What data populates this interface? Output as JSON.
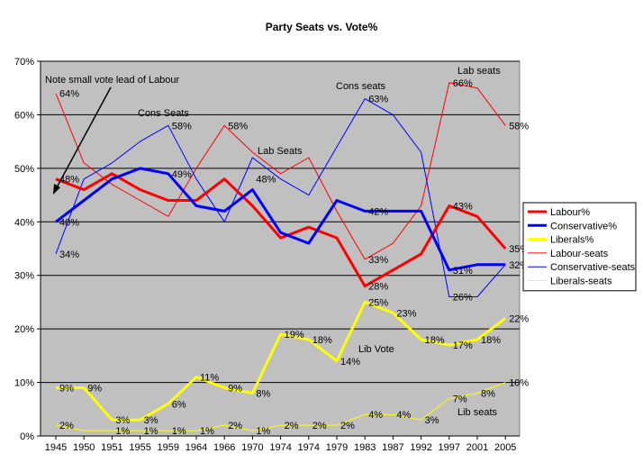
{
  "chart_data": {
    "type": "line",
    "title": "Party Seats vs. Vote%",
    "xlabel": "",
    "ylabel": "",
    "categories": [
      "1945",
      "1950",
      "1951",
      "1955",
      "1959",
      "1964",
      "1966",
      "1970",
      "1974",
      "1974",
      "1979",
      "1983",
      "1987",
      "1992",
      "1997",
      "2001",
      "2005"
    ],
    "ylim": [
      0,
      70
    ],
    "y_ticks": [
      "0%",
      "10%",
      "20%",
      "30%",
      "40%",
      "50%",
      "60%",
      "70%"
    ],
    "grid": "horizontal",
    "plot_background": "#c0c0c0",
    "legend_position": "right",
    "series": [
      {
        "name": "Labour%",
        "color": "#ff0000",
        "width": 3,
        "values": [
          48,
          46,
          49,
          46,
          44,
          44,
          48,
          43,
          37,
          39,
          37,
          28,
          31,
          34,
          43,
          41,
          35
        ]
      },
      {
        "name": "Conservative%",
        "color": "#0000ff",
        "width": 3,
        "values": [
          40,
          44,
          48,
          50,
          49,
          43,
          42,
          46,
          38,
          36,
          44,
          42,
          42,
          42,
          31,
          32,
          32
        ]
      },
      {
        "name": "Liberals%",
        "color": "#ffff00",
        "width": 3,
        "values": [
          9,
          9,
          3,
          3,
          6,
          11,
          9,
          8,
          19,
          18,
          14,
          25,
          23,
          18,
          17,
          18,
          22
        ]
      },
      {
        "name": "Labour-seats",
        "color": "#ff0000",
        "width": 1,
        "values": [
          64,
          51,
          47,
          44,
          41,
          50,
          58,
          53,
          49,
          52,
          42,
          33,
          36,
          43,
          66,
          65,
          58
        ]
      },
      {
        "name": "Conservative-seats",
        "color": "#0000ff",
        "width": 1,
        "values": [
          34,
          48,
          51,
          55,
          58,
          48,
          40,
          52,
          48,
          45,
          54,
          63,
          60,
          53,
          26,
          26,
          32
        ]
      },
      {
        "name": "Liberals-seats",
        "color": "#ffff00",
        "width": 1,
        "values": [
          2,
          1,
          1,
          1,
          1,
          1,
          2,
          1,
          2,
          2,
          2,
          4,
          4,
          3,
          7,
          8,
          10
        ]
      }
    ],
    "data_labels": [
      {
        "text": "48%",
        "x_index": 0,
        "y": 48
      },
      {
        "text": "40%",
        "x_index": 0,
        "y": 40
      },
      {
        "text": "9%",
        "x_index": 0,
        "y": 9
      },
      {
        "text": "64%",
        "x_index": 0,
        "y": 64
      },
      {
        "text": "34%",
        "x_index": 0,
        "y": 34
      },
      {
        "text": "2%",
        "x_index": 0,
        "y": 2
      },
      {
        "text": "9%",
        "x_index": 1,
        "y": 9
      },
      {
        "text": "3%",
        "x_index": 2,
        "y": 3
      },
      {
        "text": "1%",
        "x_index": 2,
        "y": 1
      },
      {
        "text": "3%",
        "x_index": 3,
        "y": 3
      },
      {
        "text": "1%",
        "x_index": 3,
        "y": 1
      },
      {
        "text": "58%",
        "x_index": 4,
        "y": 58
      },
      {
        "text": "49%",
        "x_index": 4,
        "y": 49
      },
      {
        "text": "6%",
        "x_index": 4,
        "y": 6
      },
      {
        "text": "1%",
        "x_index": 4,
        "y": 1
      },
      {
        "text": "11%",
        "x_index": 5,
        "y": 11
      },
      {
        "text": "1%",
        "x_index": 5,
        "y": 1
      },
      {
        "text": "58%",
        "x_index": 6,
        "y": 58
      },
      {
        "text": "9%",
        "x_index": 6,
        "y": 9
      },
      {
        "text": "2%",
        "x_index": 6,
        "y": 2
      },
      {
        "text": "48%",
        "x_index": 7,
        "y": 48
      },
      {
        "text": "8%",
        "x_index": 7,
        "y": 8
      },
      {
        "text": "1%",
        "x_index": 7,
        "y": 1
      },
      {
        "text": "19%",
        "x_index": 8,
        "y": 19
      },
      {
        "text": "2%",
        "x_index": 8,
        "y": 2
      },
      {
        "text": "18%",
        "x_index": 9,
        "y": 18
      },
      {
        "text": "2%",
        "x_index": 9,
        "y": 2
      },
      {
        "text": "14%",
        "x_index": 10,
        "y": 14
      },
      {
        "text": "2%",
        "x_index": 10,
        "y": 2
      },
      {
        "text": "63%",
        "x_index": 11,
        "y": 63
      },
      {
        "text": "42%",
        "x_index": 11,
        "y": 42
      },
      {
        "text": "33%",
        "x_index": 11,
        "y": 33
      },
      {
        "text": "28%",
        "x_index": 11,
        "y": 28
      },
      {
        "text": "25%",
        "x_index": 11,
        "y": 25
      },
      {
        "text": "4%",
        "x_index": 11,
        "y": 4
      },
      {
        "text": "23%",
        "x_index": 12,
        "y": 23
      },
      {
        "text": "4%",
        "x_index": 12,
        "y": 4
      },
      {
        "text": "18%",
        "x_index": 13,
        "y": 18
      },
      {
        "text": "3%",
        "x_index": 13,
        "y": 3
      },
      {
        "text": "66%",
        "x_index": 14,
        "y": 66
      },
      {
        "text": "43%",
        "x_index": 14,
        "y": 43
      },
      {
        "text": "31%",
        "x_index": 14,
        "y": 31
      },
      {
        "text": "26%",
        "x_index": 14,
        "y": 26
      },
      {
        "text": "17%",
        "x_index": 14,
        "y": 17
      },
      {
        "text": "7%",
        "x_index": 14,
        "y": 7
      },
      {
        "text": "18%",
        "x_index": 15,
        "y": 18
      },
      {
        "text": "8%",
        "x_index": 15,
        "y": 8
      },
      {
        "text": "58%",
        "x_index": 16,
        "y": 58
      },
      {
        "text": "35%",
        "x_index": 16,
        "y": 35
      },
      {
        "text": "32%",
        "x_index": 16,
        "y": 32
      },
      {
        "text": "22%",
        "x_index": 16,
        "y": 22
      },
      {
        "text": "10%",
        "x_index": 16,
        "y": 10
      }
    ],
    "annotations": [
      {
        "text": "Note small vote lead of Labour",
        "arrow": true
      },
      {
        "text": "Cons Seats"
      },
      {
        "text": "Lab Seats"
      },
      {
        "text": "Cons seats"
      },
      {
        "text": "Lab seats"
      },
      {
        "text": "Lib Vote"
      },
      {
        "text": "Lib seats"
      }
    ]
  }
}
